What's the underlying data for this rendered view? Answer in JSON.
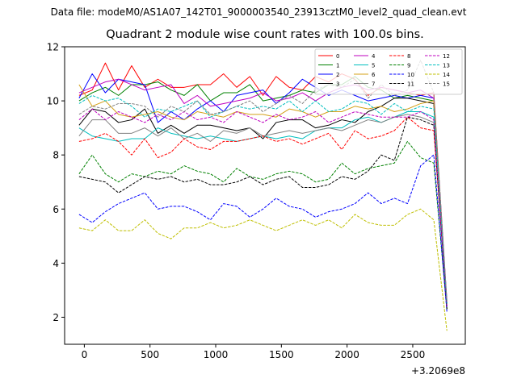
{
  "figure": {
    "suptitle": "Data file: modeM0/AS1A07_142T01_9000003540_23913cztM0_level2_quad_clean.evt",
    "title": "Quadrant 2 module wise count rates with 100.0s bins.",
    "x_offset_label": "+3.2069e8"
  },
  "chart_data": {
    "type": "line",
    "title": "Quadrant 2 module wise count rates with 100.0s bins.",
    "xlabel": "",
    "ylabel": "",
    "x_offset": "+3.2069e8",
    "xlim": [
      -150,
      2900
    ],
    "ylim": [
      1.0,
      12.0
    ],
    "xticks": [
      0,
      500,
      1000,
      1500,
      2000,
      2500
    ],
    "yticks": [
      2,
      4,
      6,
      8,
      10,
      12
    ],
    "grid": false,
    "legend_position": "top-right",
    "legend_columns": 4,
    "x": [
      -40,
      60,
      160,
      260,
      360,
      460,
      560,
      660,
      760,
      860,
      960,
      1060,
      1160,
      1260,
      1360,
      1460,
      1560,
      1660,
      1760,
      1860,
      1960,
      2060,
      2160,
      2260,
      2360,
      2460,
      2560,
      2660,
      2760
    ],
    "series": [
      {
        "name": "0",
        "color": "#ff0000",
        "dash": false,
        "values": [
          10.2,
          10.4,
          11.4,
          10.4,
          11.3,
          10.5,
          10.8,
          10.5,
          10.5,
          10.6,
          10.6,
          11.0,
          10.5,
          10.9,
          10.2,
          10.9,
          10.5,
          10.4,
          10.9,
          10.7,
          11.0,
          10.8,
          10.2,
          10.5,
          10.4,
          10.3,
          10.2,
          10.3,
          2.4
        ]
      },
      {
        "name": "1",
        "color": "#008000",
        "dash": false,
        "values": [
          10.0,
          10.3,
          10.5,
          10.2,
          10.6,
          10.6,
          10.7,
          10.4,
          10.2,
          10.6,
          10.0,
          10.3,
          10.3,
          10.6,
          10.0,
          10.1,
          10.2,
          10.4,
          10.3,
          10.6,
          10.6,
          10.9,
          10.5,
          10.4,
          10.1,
          10.2,
          10.1,
          10.0,
          2.3
        ]
      },
      {
        "name": "2",
        "color": "#0000ff",
        "dash": false,
        "values": [
          10.1,
          11.0,
          10.3,
          10.8,
          10.7,
          10.6,
          9.2,
          9.6,
          9.3,
          9.7,
          10.0,
          9.6,
          10.2,
          10.3,
          10.4,
          9.9,
          10.3,
          10.8,
          10.5,
          10.2,
          10.4,
          10.2,
          10.0,
          10.1,
          10.2,
          10.1,
          10.2,
          10.1,
          2.5
        ]
      },
      {
        "name": "3",
        "color": "#000000",
        "dash": false,
        "values": [
          9.1,
          9.7,
          9.6,
          9.2,
          9.3,
          9.7,
          8.8,
          9.1,
          8.8,
          9.1,
          9.1,
          9.0,
          8.9,
          9.0,
          8.6,
          9.2,
          9.3,
          9.3,
          9.0,
          9.1,
          9.3,
          9.2,
          9.6,
          9.8,
          10.1,
          10.1,
          10.0,
          9.9,
          2.4
        ]
      },
      {
        "name": "4",
        "color": "#bf00bf",
        "dash": false,
        "values": [
          10.3,
          10.5,
          10.7,
          10.8,
          10.6,
          10.4,
          10.5,
          10.6,
          9.9,
          10.2,
          9.8,
          9.9,
          10.0,
          10.1,
          10.3,
          10.0,
          10.1,
          10.3,
          10.0,
          10.3,
          10.5,
          10.6,
          10.4,
          10.5,
          10.4,
          10.3,
          10.4,
          10.1,
          2.6
        ]
      },
      {
        "name": "5",
        "color": "#00bfbf",
        "dash": false,
        "values": [
          9.0,
          8.7,
          8.6,
          8.5,
          8.6,
          8.6,
          9.0,
          8.8,
          8.7,
          8.6,
          8.7,
          8.6,
          8.5,
          8.6,
          8.7,
          8.6,
          8.7,
          8.6,
          8.9,
          9.0,
          9.0,
          9.3,
          9.4,
          9.2,
          9.4,
          9.6,
          9.6,
          9.4,
          2.4
        ]
      },
      {
        "name": "6",
        "color": "#d4a017",
        "dash": false,
        "values": [
          10.6,
          9.8,
          10.0,
          9.5,
          9.4,
          9.5,
          9.6,
          9.4,
          9.3,
          9.6,
          9.5,
          9.4,
          9.6,
          9.5,
          9.5,
          9.4,
          9.7,
          9.6,
          9.4,
          9.6,
          9.6,
          9.8,
          9.7,
          9.8,
          9.6,
          9.7,
          9.9,
          10.0,
          2.5
        ]
      },
      {
        "name": "7",
        "color": "#808080",
        "dash": false,
        "values": [
          8.7,
          9.3,
          9.3,
          8.8,
          8.8,
          9.0,
          8.7,
          9.0,
          8.6,
          8.8,
          8.5,
          8.9,
          8.8,
          9.0,
          8.7,
          8.8,
          8.9,
          8.8,
          8.9,
          9.0,
          8.9,
          9.1,
          9.3,
          9.2,
          9.4,
          9.5,
          9.4,
          9.2,
          2.3
        ]
      },
      {
        "name": "8",
        "color": "#ff0000",
        "dash": true,
        "values": [
          8.5,
          8.6,
          8.8,
          8.5,
          8.0,
          8.6,
          7.9,
          8.1,
          8.6,
          8.3,
          8.2,
          8.5,
          8.5,
          8.6,
          8.7,
          8.5,
          8.6,
          8.4,
          8.6,
          8.8,
          8.2,
          8.9,
          8.6,
          8.7,
          8.9,
          9.4,
          9.0,
          8.9,
          2.5
        ]
      },
      {
        "name": "9",
        "color": "#008000",
        "dash": true,
        "values": [
          7.3,
          8.0,
          7.3,
          7.0,
          7.3,
          7.2,
          7.4,
          7.3,
          7.6,
          7.4,
          7.3,
          7.0,
          7.5,
          7.2,
          7.1,
          7.3,
          7.4,
          7.3,
          7.0,
          7.1,
          7.7,
          7.3,
          7.5,
          7.6,
          7.7,
          8.5,
          7.9,
          7.7,
          2.3
        ]
      },
      {
        "name": "10",
        "color": "#0000ff",
        "dash": true,
        "values": [
          5.8,
          5.5,
          5.9,
          6.2,
          6.4,
          6.6,
          6.0,
          6.1,
          6.1,
          5.9,
          5.6,
          6.2,
          6.1,
          5.7,
          6.0,
          6.4,
          6.1,
          6.0,
          5.7,
          5.9,
          6.0,
          6.2,
          6.6,
          6.2,
          6.4,
          6.2,
          7.6,
          8.0,
          2.2
        ]
      },
      {
        "name": "11",
        "color": "#000000",
        "dash": true,
        "values": [
          7.2,
          7.1,
          7.0,
          6.6,
          6.9,
          7.2,
          7.1,
          7.2,
          7.0,
          7.1,
          6.9,
          6.9,
          7.0,
          7.2,
          6.9,
          7.1,
          7.2,
          6.8,
          6.8,
          6.9,
          7.2,
          7.1,
          7.4,
          8.0,
          7.8,
          9.4,
          9.3,
          9.1,
          2.3
        ]
      },
      {
        "name": "12",
        "color": "#bf00bf",
        "dash": true,
        "values": [
          9.3,
          9.7,
          9.3,
          9.6,
          9.4,
          9.2,
          9.5,
          9.3,
          9.6,
          9.3,
          9.4,
          9.2,
          9.6,
          9.4,
          9.2,
          9.5,
          9.3,
          9.4,
          9.6,
          9.2,
          9.4,
          9.6,
          9.5,
          9.4,
          9.4,
          9.4,
          9.6,
          9.3,
          2.4
        ]
      },
      {
        "name": "13",
        "color": "#00bfbf",
        "dash": true,
        "values": [
          9.9,
          10.2,
          10.0,
          10.1,
          9.8,
          9.4,
          9.7,
          9.6,
          9.8,
          10.0,
          9.4,
          9.6,
          9.8,
          9.7,
          9.8,
          9.7,
          10.0,
          9.6,
          10.0,
          9.6,
          9.7,
          10.0,
          9.9,
          9.5,
          9.9,
          9.6,
          9.8,
          9.7,
          2.5
        ]
      },
      {
        "name": "14",
        "color": "#bfbf00",
        "dash": true,
        "values": [
          5.3,
          5.2,
          5.6,
          5.2,
          5.2,
          5.6,
          5.1,
          4.9,
          5.3,
          5.3,
          5.5,
          5.3,
          5.4,
          5.6,
          5.4,
          5.2,
          5.4,
          5.6,
          5.4,
          5.6,
          5.3,
          5.8,
          5.5,
          5.4,
          5.4,
          5.8,
          6.0,
          5.6,
          1.5
        ]
      },
      {
        "name": "15",
        "color": "#808080",
        "dash": true,
        "values": [
          9.5,
          9.8,
          9.7,
          9.9,
          9.9,
          9.8,
          9.4,
          9.8,
          9.6,
          10.0,
          9.5,
          9.6,
          9.8,
          10.0,
          9.6,
          9.9,
          10.2,
          9.9,
          10.4,
          10.6,
          10.5,
          10.8,
          10.1,
          10.6,
          10.2,
          10.4,
          11.5,
          10.3,
          2.6
        ]
      }
    ]
  }
}
